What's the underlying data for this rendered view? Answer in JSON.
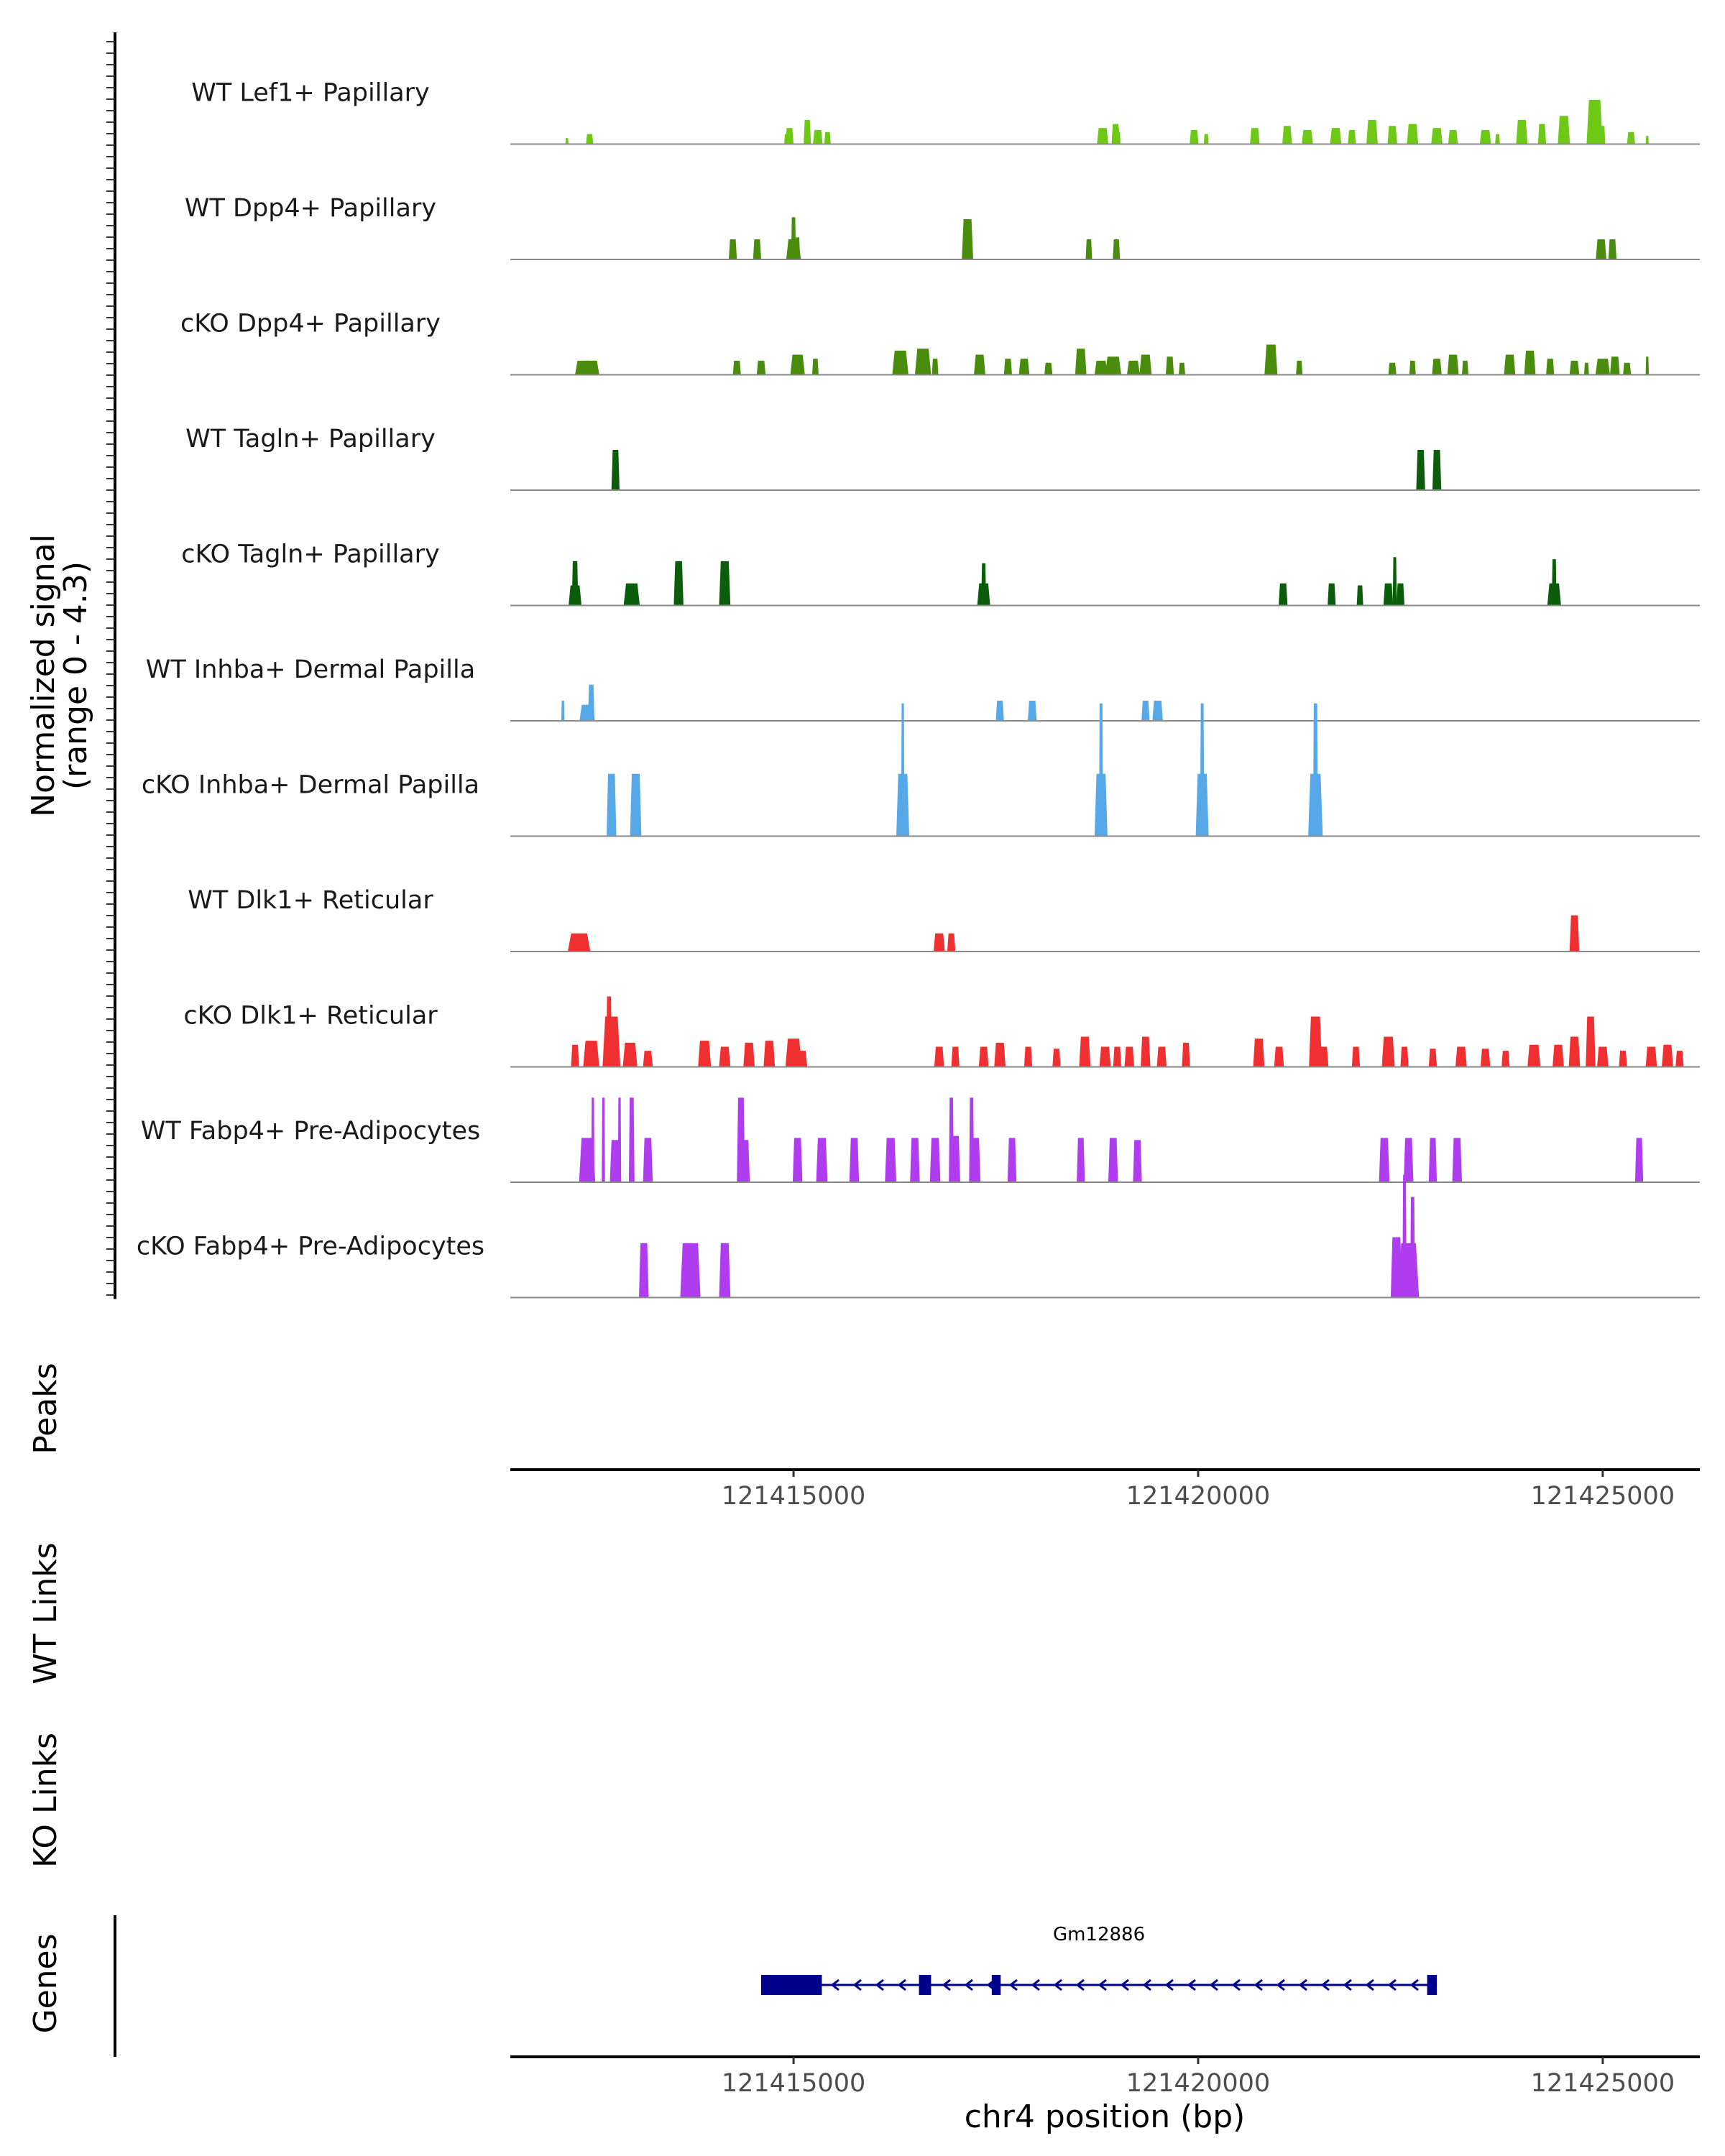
{
  "chart_data": {
    "type": "area",
    "region": {
      "chrom": "chr4",
      "start": 121411500,
      "end": 121426200
    },
    "xlabel": "chr4 position (bp)",
    "x_ticks": [
      121415000,
      121420000,
      121425000
    ],
    "x_tick_labels": [
      "121415000",
      "121420000",
      "121425000"
    ],
    "coverage_ylabel": "Normalized signal",
    "coverage_range_label": "(range 0 - 4.3)",
    "ylim": [
      0,
      4.3
    ],
    "tracks": [
      {
        "name": "WT Lef1+ Papillary",
        "color": "#6ec816",
        "peaks": [
          [
            121412200,
            0.3,
            40
          ],
          [
            121412480,
            0.5,
            90
          ],
          [
            121414950,
            0.8,
            100
          ],
          [
            121415170,
            1.2,
            90
          ],
          [
            121415300,
            0.7,
            120
          ],
          [
            121414910,
            0.5,
            50
          ],
          [
            121415420,
            0.6,
            80
          ],
          [
            121418820,
            0.8,
            140
          ],
          [
            121418980,
            1.0,
            100
          ],
          [
            121419000,
            0.8,
            60
          ],
          [
            121419020,
            0.6,
            40
          ],
          [
            121419950,
            0.7,
            110
          ],
          [
            121420100,
            0.5,
            60
          ],
          [
            121420700,
            0.8,
            120
          ],
          [
            121421100,
            0.9,
            120
          ],
          [
            121421350,
            0.7,
            140
          ],
          [
            121421700,
            0.8,
            140
          ],
          [
            121421900,
            0.7,
            100
          ],
          [
            121422150,
            1.2,
            140
          ],
          [
            121422400,
            0.9,
            120
          ],
          [
            121422650,
            1.0,
            140
          ],
          [
            121422950,
            0.8,
            140
          ],
          [
            121423150,
            0.7,
            120
          ],
          [
            121423550,
            0.7,
            140
          ],
          [
            121423700,
            0.5,
            60
          ],
          [
            121424000,
            1.2,
            140
          ],
          [
            121424250,
            1.0,
            100
          ],
          [
            121424520,
            1.4,
            150
          ],
          [
            121424900,
            2.2,
            200
          ],
          [
            121425000,
            0.9,
            60
          ],
          [
            121425350,
            0.6,
            100
          ],
          [
            121425550,
            0.4,
            40
          ]
        ]
      },
      {
        "name": "WT Dpp4+ Papillary",
        "color": "#4a8c0c",
        "peaks": [
          [
            121414250,
            1.0,
            100
          ],
          [
            121414550,
            1.0,
            100
          ],
          [
            121415000,
            1.0,
            180
          ],
          [
            121415000,
            2.1,
            60
          ],
          [
            121415050,
            1.1,
            60
          ],
          [
            121417150,
            2.0,
            140
          ],
          [
            121418650,
            1.0,
            80
          ],
          [
            121418990,
            1.0,
            90
          ],
          [
            121424980,
            1.0,
            130
          ],
          [
            121425120,
            1.0,
            100
          ]
        ]
      },
      {
        "name": "cKO Dpp4+ Papillary",
        "color": "#4a8c0c",
        "peaks": [
          [
            121412400,
            0.7,
            200
          ],
          [
            121412500,
            0.7,
            200
          ],
          [
            121414300,
            0.7,
            100
          ],
          [
            121414600,
            0.7,
            110
          ],
          [
            121415050,
            1.0,
            180
          ],
          [
            121415270,
            0.8,
            80
          ],
          [
            121416320,
            1.2,
            200
          ],
          [
            121416600,
            1.3,
            200
          ],
          [
            121416750,
            0.8,
            80
          ],
          [
            121417300,
            1.0,
            140
          ],
          [
            121417650,
            0.8,
            100
          ],
          [
            121417850,
            0.8,
            130
          ],
          [
            121418150,
            0.6,
            100
          ],
          [
            121418550,
            1.3,
            140
          ],
          [
            121418800,
            0.7,
            160
          ],
          [
            121418950,
            0.9,
            200
          ],
          [
            121419200,
            0.7,
            160
          ],
          [
            121419350,
            1.0,
            150
          ],
          [
            121419650,
            0.9,
            100
          ],
          [
            121419800,
            0.6,
            80
          ],
          [
            121420900,
            1.5,
            160
          ],
          [
            121421250,
            0.7,
            80
          ],
          [
            121422400,
            0.6,
            100
          ],
          [
            121422650,
            0.7,
            80
          ],
          [
            121422950,
            0.8,
            120
          ],
          [
            121423150,
            1.0,
            140
          ],
          [
            121423300,
            0.7,
            80
          ],
          [
            121423850,
            1.0,
            140
          ],
          [
            121424100,
            1.2,
            140
          ],
          [
            121424350,
            0.8,
            100
          ],
          [
            121424650,
            0.7,
            120
          ],
          [
            121424800,
            0.6,
            60
          ],
          [
            121425000,
            0.8,
            180
          ],
          [
            121425150,
            0.9,
            120
          ],
          [
            121425300,
            0.6,
            100
          ],
          [
            121425550,
            0.9,
            40
          ]
        ]
      },
      {
        "name": "WT Tagln+ Papillary",
        "color": "#0b5c0b",
        "peaks": [
          [
            121412800,
            2.0,
            100
          ],
          [
            121422750,
            2.0,
            110
          ],
          [
            121422950,
            2.0,
            110
          ]
        ]
      },
      {
        "name": "cKO Tagln+ Papillary",
        "color": "#0b5c0b",
        "peaks": [
          [
            121412300,
            1.0,
            160
          ],
          [
            121412300,
            2.2,
            80
          ],
          [
            121413000,
            1.1,
            200
          ],
          [
            121413580,
            2.2,
            120
          ],
          [
            121414150,
            2.2,
            140
          ],
          [
            121417350,
            1.1,
            160
          ],
          [
            121417350,
            2.1,
            60
          ],
          [
            121421050,
            1.1,
            110
          ],
          [
            121421650,
            1.1,
            100
          ],
          [
            121422000,
            1.0,
            80
          ],
          [
            121422350,
            1.1,
            120
          ],
          [
            121422430,
            2.4,
            50
          ],
          [
            121422500,
            1.1,
            100
          ],
          [
            121424400,
            1.1,
            170
          ],
          [
            121424400,
            2.3,
            60
          ]
        ]
      },
      {
        "name": "WT Inhba+ Dermal Papilla",
        "color": "#56a8e8",
        "peaks": [
          [
            121412150,
            1.0,
            40
          ],
          [
            121412450,
            0.8,
            190
          ],
          [
            121412500,
            1.8,
            80
          ],
          [
            121417550,
            1.0,
            100
          ],
          [
            121417950,
            1.0,
            110
          ],
          [
            121419350,
            1.0,
            100
          ],
          [
            121419500,
            1.0,
            130
          ]
        ]
      },
      {
        "name": "cKO Inhba+ Dermal Papilla",
        "color": "#56a8e8",
        "peaks": [
          [
            121412750,
            3.1,
            120
          ],
          [
            121413050,
            3.1,
            140
          ],
          [
            121416350,
            3.1,
            160
          ],
          [
            121416350,
            6.6,
            40
          ],
          [
            121418800,
            3.1,
            160
          ],
          [
            121418800,
            6.6,
            50
          ],
          [
            121420050,
            3.1,
            160
          ],
          [
            121420050,
            6.6,
            50
          ],
          [
            121421450,
            3.1,
            180
          ],
          [
            121421450,
            6.6,
            60
          ]
        ]
      },
      {
        "name": "WT Dlk1+ Reticular",
        "color": "#f03030",
        "peaks": [
          [
            121412350,
            0.9,
            280
          ],
          [
            121416800,
            0.9,
            140
          ],
          [
            121416950,
            0.9,
            100
          ],
          [
            121424650,
            1.8,
            120
          ],
          [
            121424650,
            0.9,
            100
          ]
        ]
      },
      {
        "name": "cKO Dlk1+ Reticular",
        "color": "#f03030",
        "peaks": [
          [
            121412300,
            1.1,
            100
          ],
          [
            121412500,
            1.3,
            200
          ],
          [
            121412750,
            2.5,
            220
          ],
          [
            121412720,
            3.5,
            70
          ],
          [
            121412980,
            1.2,
            180
          ],
          [
            121413200,
            0.8,
            120
          ],
          [
            121413900,
            1.3,
            160
          ],
          [
            121414150,
            1.0,
            140
          ],
          [
            121414450,
            1.2,
            140
          ],
          [
            121414700,
            1.3,
            140
          ],
          [
            121415000,
            1.4,
            200
          ],
          [
            121415100,
            0.8,
            140
          ],
          [
            121416800,
            1.0,
            120
          ],
          [
            121417000,
            1.0,
            100
          ],
          [
            121417350,
            1.0,
            120
          ],
          [
            121417550,
            1.2,
            140
          ],
          [
            121417900,
            1.0,
            100
          ],
          [
            121418250,
            0.9,
            100
          ],
          [
            121418600,
            1.5,
            140
          ],
          [
            121418850,
            1.0,
            140
          ],
          [
            121419000,
            1.0,
            100
          ],
          [
            121419150,
            1.0,
            120
          ],
          [
            121419350,
            1.5,
            120
          ],
          [
            121419550,
            1.0,
            120
          ],
          [
            121419850,
            1.2,
            100
          ],
          [
            121420750,
            1.4,
            140
          ],
          [
            121421000,
            1.0,
            120
          ],
          [
            121421450,
            2.5,
            160
          ],
          [
            121421550,
            1.0,
            120
          ],
          [
            121421950,
            1.0,
            100
          ],
          [
            121422350,
            1.5,
            160
          ],
          [
            121422550,
            1.0,
            100
          ],
          [
            121422900,
            0.9,
            100
          ],
          [
            121423250,
            1.0,
            140
          ],
          [
            121423550,
            0.9,
            120
          ],
          [
            121423800,
            0.8,
            100
          ],
          [
            121424150,
            1.1,
            160
          ],
          [
            121424450,
            1.1,
            140
          ],
          [
            121424650,
            1.5,
            140
          ],
          [
            121424850,
            2.5,
            120
          ],
          [
            121425000,
            1.0,
            140
          ],
          [
            121425250,
            0.8,
            100
          ],
          [
            121425600,
            1.0,
            140
          ],
          [
            121425800,
            1.1,
            140
          ],
          [
            121425950,
            0.8,
            100
          ]
        ]
      },
      {
        "name": "WT Fabp4+ Pre-Adipocytes",
        "color": "#b03cf0",
        "peaks": [
          [
            121412450,
            2.2,
            200
          ],
          [
            121412520,
            4.2,
            40
          ],
          [
            121412650,
            4.2,
            40
          ],
          [
            121412800,
            2.1,
            140
          ],
          [
            121412850,
            4.2,
            40
          ],
          [
            121413000,
            4.2,
            70
          ],
          [
            121413200,
            2.2,
            120
          ],
          [
            121414350,
            4.2,
            100
          ],
          [
            121414400,
            2.1,
            120
          ],
          [
            121415050,
            2.2,
            120
          ],
          [
            121415350,
            2.2,
            140
          ],
          [
            121415750,
            2.2,
            120
          ],
          [
            121416200,
            2.2,
            140
          ],
          [
            121416500,
            2.2,
            120
          ],
          [
            121416750,
            2.2,
            130
          ],
          [
            121416950,
            4.2,
            60
          ],
          [
            121417000,
            2.3,
            120
          ],
          [
            121417200,
            4.2,
            60
          ],
          [
            121417250,
            2.2,
            120
          ],
          [
            121417700,
            2.2,
            110
          ],
          [
            121418550,
            2.2,
            100
          ],
          [
            121418950,
            2.2,
            120
          ],
          [
            121419250,
            2.1,
            110
          ],
          [
            121422300,
            2.2,
            130
          ],
          [
            121422600,
            2.2,
            120
          ],
          [
            121422900,
            2.2,
            100
          ],
          [
            121423200,
            2.2,
            120
          ],
          [
            121425450,
            2.2,
            100
          ]
        ]
      },
      {
        "name": "cKO Fabp4+ Pre-Adipocytes",
        "color": "#b03cf0",
        "peaks": [
          [
            121413150,
            2.7,
            120
          ],
          [
            121413700,
            2.7,
            200
          ],
          [
            121413750,
            2.7,
            200
          ],
          [
            121414150,
            2.7,
            140
          ],
          [
            121422450,
            3.0,
            140
          ],
          [
            121422550,
            6.1,
            50
          ],
          [
            121422650,
            5.0,
            60
          ],
          [
            121422600,
            2.7,
            260
          ]
        ]
      }
    ],
    "panel_labels": {
      "peaks": "Peaks",
      "wt_links": "WT Links",
      "ko_links": "KO Links",
      "genes": "Genes"
    },
    "genes": [
      {
        "name": "Gm12886",
        "start": 121414600,
        "end": 121422950,
        "strand": "-",
        "exons": [
          [
            121414600,
            121415350
          ],
          [
            121416550,
            121416700
          ],
          [
            121417450,
            121417560
          ],
          [
            121422830,
            121422950
          ]
        ],
        "color": "#00008b"
      }
    ]
  }
}
